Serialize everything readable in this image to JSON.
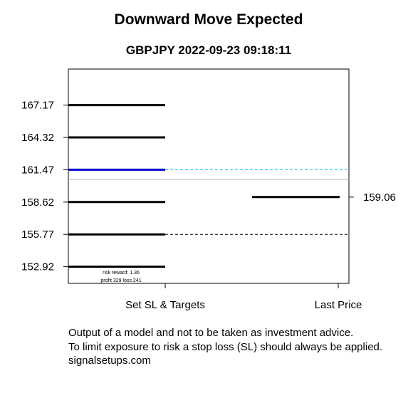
{
  "chart_data": {
    "type": "line",
    "title": "Downward Move Expected",
    "subtitle": "GBPJPY 2022-09-23 09:18:11",
    "categories": [
      "Set SL & Targets",
      "Last Price"
    ],
    "y_ticks": [
      "167.17",
      "164.32",
      "161.47",
      "158.62",
      "155.77",
      "152.92"
    ],
    "ylim": [
      151.45,
      170.35
    ],
    "levels": [
      {
        "value": 167.17,
        "color": "#000000",
        "role": "target"
      },
      {
        "value": 164.32,
        "color": "#000000",
        "role": "target"
      },
      {
        "value": 161.47,
        "color": "#0000cc",
        "role": "stop loss"
      },
      {
        "value": 158.62,
        "color": "#000000",
        "role": "target"
      },
      {
        "value": 155.77,
        "color": "#000000",
        "role": "target"
      },
      {
        "value": 152.92,
        "color": "#000000",
        "role": "target"
      }
    ],
    "reference_lines": [
      {
        "value": 161.47,
        "color": "#00bfff",
        "style": "dashed"
      },
      {
        "value": 155.77,
        "color": "#000000",
        "style": "dashed"
      },
      {
        "value": 160.6,
        "color": "#bbbbbb",
        "style": "solid"
      }
    ],
    "last_price": {
      "value": 159.06,
      "label": "159.06"
    },
    "annotation_lines": [
      "risk reward: 1.36",
      "profit 329  loss 241"
    ],
    "grid": false
  },
  "footer_lines": [
    "Output of a model and not to be taken as investment advice.",
    "To limit exposure to risk a stop loss (SL) should always be applied.",
    "signalsetups.com"
  ]
}
